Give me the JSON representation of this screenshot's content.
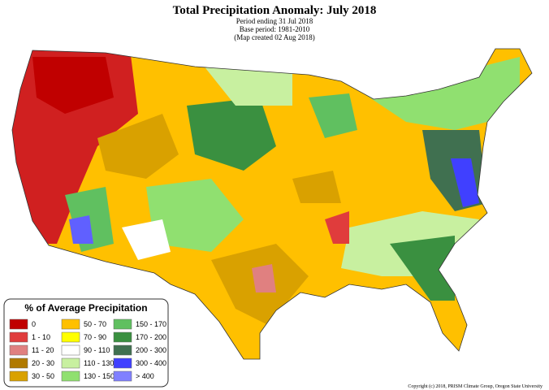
{
  "header": {
    "title": "Total Precipitation Anomaly: July 2018",
    "lines": [
      "Period ending 31 Jul 2018",
      "Base period: 1981-2010",
      "(Map created 02 Aug 2018)"
    ]
  },
  "legend": {
    "title": "% of Average Precipitation",
    "items": [
      {
        "label": "0",
        "color": "#c00000"
      },
      {
        "label": "1 - 10",
        "color": "#e03c3c"
      },
      {
        "label": "11 - 20",
        "color": "#e08080"
      },
      {
        "label": "20 - 30",
        "color": "#b07a00"
      },
      {
        "label": "30 - 50",
        "color": "#d9a100"
      },
      {
        "label": "50 - 70",
        "color": "#ffc000"
      },
      {
        "label": "70 - 90",
        "color": "#ffff00"
      },
      {
        "label": "90 - 110",
        "color": "#ffffff"
      },
      {
        "label": "110 - 130",
        "color": "#c8f0a0"
      },
      {
        "label": "130 - 150",
        "color": "#90e070"
      },
      {
        "label": "150 - 170",
        "color": "#60c060"
      },
      {
        "label": "170 - 200",
        "color": "#3a9040"
      },
      {
        "label": "200 - 300",
        "color": "#407050"
      },
      {
        "label": "300 - 400",
        "color": "#4040ff"
      },
      {
        "label": "> 400",
        "color": "#8080ff"
      }
    ]
  },
  "footer": {
    "copyright": "Copyright (c) 2018, PRISM Climate Group, Oregon State University"
  }
}
